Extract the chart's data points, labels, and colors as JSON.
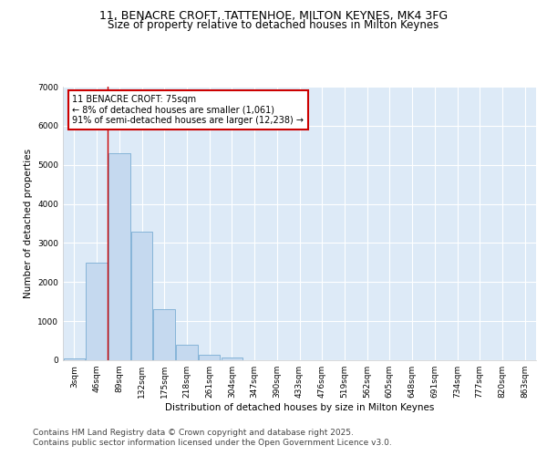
{
  "title_line1": "11, BENACRE CROFT, TATTENHOE, MILTON KEYNES, MK4 3FG",
  "title_line2": "Size of property relative to detached houses in Milton Keynes",
  "xlabel": "Distribution of detached houses by size in Milton Keynes",
  "ylabel": "Number of detached properties",
  "bar_labels": [
    "3sqm",
    "46sqm",
    "89sqm",
    "132sqm",
    "175sqm",
    "218sqm",
    "261sqm",
    "304sqm",
    "347sqm",
    "390sqm",
    "433sqm",
    "476sqm",
    "519sqm",
    "562sqm",
    "605sqm",
    "648sqm",
    "691sqm",
    "734sqm",
    "777sqm",
    "820sqm",
    "863sqm"
  ],
  "bar_values": [
    50,
    2500,
    5300,
    3300,
    1300,
    400,
    150,
    70,
    10,
    0,
    0,
    0,
    0,
    0,
    0,
    0,
    0,
    0,
    0,
    0,
    0
  ],
  "bar_color": "#c5d9ef",
  "bar_edge_color": "#7aadd4",
  "annotation_text": "11 BENACRE CROFT: 75sqm\n← 8% of detached houses are smaller (1,061)\n91% of semi-detached houses are larger (12,238) →",
  "annotation_box_color": "#ffffff",
  "annotation_box_edge": "#cc0000",
  "vline_color": "#cc0000",
  "ylim": [
    0,
    7000
  ],
  "yticks": [
    0,
    1000,
    2000,
    3000,
    4000,
    5000,
    6000,
    7000
  ],
  "plot_bg_color": "#ddeaf7",
  "fig_bg_color": "#ffffff",
  "footer_line1": "Contains HM Land Registry data © Crown copyright and database right 2025.",
  "footer_line2": "Contains public sector information licensed under the Open Government Licence v3.0.",
  "footer_fontsize": 6.5,
  "title_fontsize": 9,
  "subtitle_fontsize": 8.5,
  "axis_label_fontsize": 7.5,
  "tick_fontsize": 6.5,
  "annot_fontsize": 7
}
